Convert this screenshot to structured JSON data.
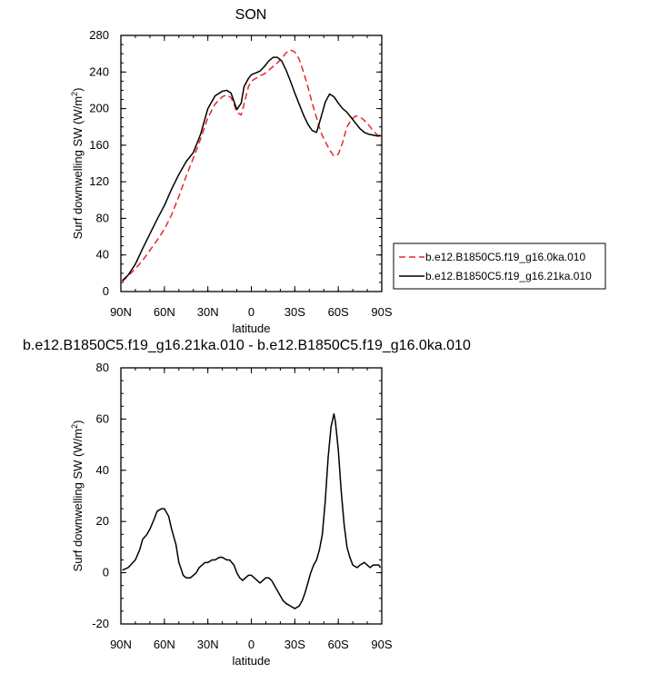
{
  "chart_data": [
    {
      "type": "line",
      "title": "SON",
      "xlabel": "latitude",
      "ylabel_main": "Surf downwelling SW (W/m",
      "ylabel_sup": "2",
      "ylabel_tail": ")",
      "xlim": [
        90,
        -90
      ],
      "ylim": [
        0,
        280
      ],
      "xticks": [
        90,
        60,
        30,
        0,
        -30,
        -60,
        -90
      ],
      "xtick_labels": [
        "90N",
        "60N",
        "30N",
        "0",
        "30S",
        "60S",
        "90S"
      ],
      "yticks": [
        0,
        40,
        80,
        120,
        160,
        200,
        240,
        280
      ],
      "ytick_labels": [
        "0",
        "40",
        "80",
        "120",
        "160",
        "200",
        "240",
        "280"
      ],
      "legend_position": "right",
      "series": [
        {
          "name": "b.e12.B1850C5.f19_g16.0ka.010",
          "color": "#e8262b",
          "dash": "dashed",
          "x": [
            89,
            85,
            80,
            75,
            70,
            65,
            60,
            55,
            50,
            45,
            40,
            35,
            30,
            25,
            20,
            17,
            14,
            12,
            10,
            7,
            5,
            2,
            0,
            -3,
            -6,
            -9,
            -12,
            -15,
            -18,
            -21,
            -24,
            -27,
            -30,
            -33,
            -36,
            -39,
            -42,
            -45,
            -48,
            -51,
            -54,
            -57,
            -60,
            -63,
            -66,
            -69,
            -72,
            -75,
            -78,
            -81,
            -84,
            -87,
            -89
          ],
          "y": [
            11,
            17,
            25,
            34,
            45,
            56,
            68,
            84,
            104,
            126,
            146,
            167,
            190,
            205,
            213,
            215,
            212,
            205,
            196,
            193,
            205,
            224,
            230,
            233,
            236,
            238,
            242,
            246,
            250,
            255,
            261,
            264,
            262,
            254,
            240,
            224,
            206,
            190,
            174,
            164,
            155,
            148,
            150,
            163,
            180,
            188,
            192,
            191,
            187,
            182,
            176,
            171,
            168
          ]
        },
        {
          "name": "b.e12.B1850C5.f19_g16.21ka.010",
          "color": "#000000",
          "dash": "solid",
          "x": [
            89,
            85,
            80,
            75,
            70,
            65,
            60,
            55,
            50,
            45,
            40,
            35,
            30,
            25,
            20,
            17,
            14,
            12,
            10,
            7,
            5,
            2,
            0,
            -3,
            -6,
            -9,
            -12,
            -15,
            -18,
            -21,
            -24,
            -27,
            -30,
            -33,
            -36,
            -39,
            -42,
            -45,
            -48,
            -51,
            -54,
            -57,
            -60,
            -63,
            -66,
            -69,
            -72,
            -75,
            -78,
            -81,
            -84,
            -87,
            -89
          ],
          "y": [
            12,
            18,
            30,
            47,
            63,
            79,
            94,
            112,
            128,
            142,
            152,
            172,
            200,
            214,
            219,
            220,
            217,
            208,
            199,
            206,
            224,
            233,
            237,
            239,
            241,
            246,
            252,
            256,
            256,
            252,
            242,
            230,
            217,
            205,
            193,
            183,
            176,
            174,
            190,
            207,
            216,
            213,
            206,
            200,
            196,
            190,
            184,
            178,
            174,
            172,
            171,
            170,
            171
          ]
        }
      ]
    },
    {
      "type": "line",
      "title": "b.e12.B1850C5.f19_g16.21ka.010 - b.e12.B1850C5.f19_g16.0ka.010",
      "xlabel": "latitude",
      "ylabel_main": "Surf downwelling SW (W/m",
      "ylabel_sup": "2",
      "ylabel_tail": ")",
      "xlim": [
        90,
        -90
      ],
      "ylim": [
        -20,
        80
      ],
      "xticks": [
        90,
        60,
        30,
        0,
        -30,
        -60,
        -90
      ],
      "xtick_labels": [
        "90N",
        "60N",
        "30N",
        "0",
        "30S",
        "60S",
        "90S"
      ],
      "yticks": [
        -20,
        0,
        20,
        40,
        60,
        80
      ],
      "ytick_labels": [
        "-20",
        "0",
        "20",
        "40",
        "60",
        "80"
      ],
      "series": [
        {
          "color": "#000000",
          "dash": "solid",
          "x": [
            89,
            85,
            80,
            77,
            75,
            72,
            70,
            67,
            65,
            62,
            60,
            57,
            55,
            52,
            50,
            47,
            45,
            42,
            40,
            38,
            36,
            34,
            32,
            30,
            27,
            25,
            22,
            20,
            17,
            15,
            12,
            10,
            8,
            6,
            4,
            2,
            0,
            -2,
            -4,
            -6,
            -8,
            -10,
            -12,
            -14,
            -16,
            -18,
            -20,
            -22,
            -24,
            -27,
            -30,
            -33,
            -35,
            -37,
            -39,
            -41,
            -43,
            -45,
            -47,
            -49,
            -51,
            -53,
            -55,
            -57,
            -58,
            -60,
            -62,
            -64,
            -66,
            -68,
            -70,
            -73,
            -75,
            -78,
            -80,
            -82,
            -84,
            -86,
            -88,
            -89
          ],
          "y": [
            1,
            2,
            5,
            9,
            13,
            15,
            17,
            21,
            24,
            25,
            25,
            22,
            17,
            11,
            4,
            -1,
            -2,
            -2,
            -1,
            0,
            2,
            3,
            4,
            4,
            5,
            5,
            6,
            6,
            5,
            5,
            3,
            0,
            -2,
            -3,
            -2,
            -1,
            -1,
            -2,
            -3,
            -4,
            -3,
            -2,
            -2,
            -3,
            -5,
            -7,
            -9,
            -11,
            -12,
            -13,
            -14,
            -13,
            -11,
            -8,
            -4,
            0,
            3,
            5,
            9,
            15,
            28,
            45,
            57,
            62,
            59,
            48,
            32,
            19,
            10,
            6,
            3,
            2,
            3,
            4,
            3,
            2,
            3,
            3,
            3,
            2
          ]
        }
      ]
    }
  ]
}
